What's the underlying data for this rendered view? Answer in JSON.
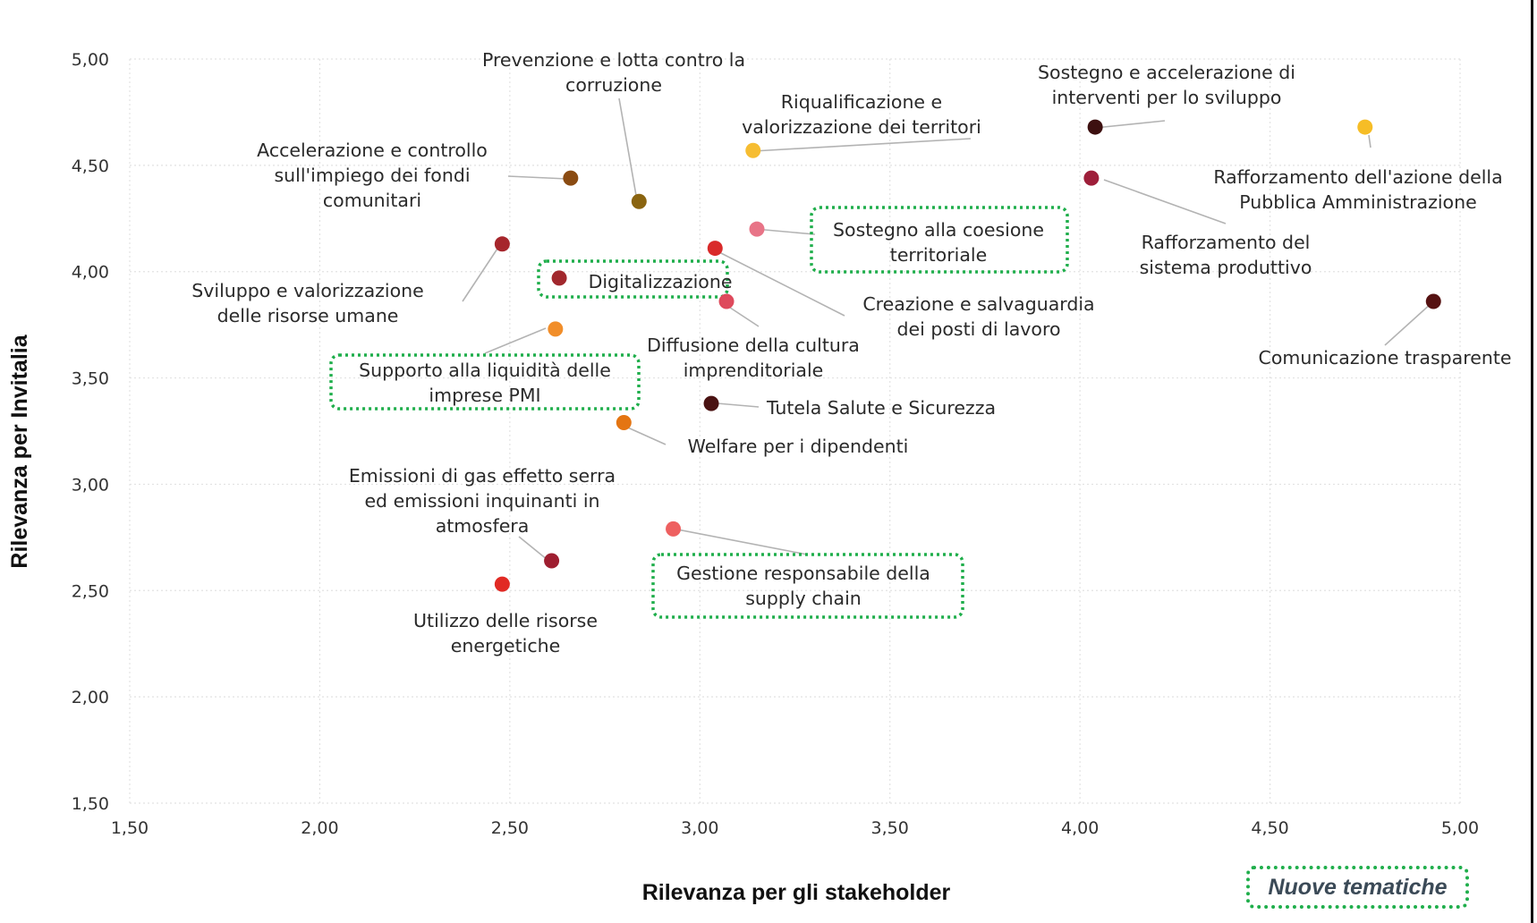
{
  "chart_data": {
    "type": "scatter",
    "xlabel": "Rilevanza per gli stakeholder",
    "ylabel": "Rilevanza per Invitalia",
    "xlim": [
      1.5,
      5.0
    ],
    "ylim": [
      1.5,
      5.0
    ],
    "xticks": [
      "1,50",
      "2,00",
      "2,50",
      "3,00",
      "3,50",
      "4,00",
      "4,50",
      "5,00"
    ],
    "yticks": [
      "1,50",
      "2,00",
      "2,50",
      "3,00",
      "3,50",
      "4,00",
      "4,50",
      "5,00"
    ],
    "grid": true,
    "legend": {
      "label": "Nuove tematiche",
      "placement": "bottom-right",
      "style": "green-dotted-box"
    },
    "points": [
      {
        "label": "Prevenzione e lotta contro la corruzione",
        "lines": [
          "Prevenzione e lotta contro la",
          "corruzione"
        ],
        "x": 2.84,
        "y": 4.33,
        "color": "#8a6410",
        "new": false
      },
      {
        "label": "Accelerazione e controllo sull'impiego dei fondi comunitari",
        "lines": [
          "Accelerazione e controllo",
          "sull'impiego dei fondi",
          "comunitari"
        ],
        "x": 2.66,
        "y": 4.44,
        "color": "#8a4b12",
        "new": false
      },
      {
        "label": "Riqualificazione e valorizzazione dei territori",
        "lines": [
          "Riqualificazione e",
          "valorizzazione dei territori"
        ],
        "x": 3.14,
        "y": 4.57,
        "color": "#f6bd32",
        "new": false
      },
      {
        "label": "Sostegno e accelerazione di interventi per lo sviluppo",
        "lines": [
          "Sostegno e accelerazione di",
          "interventi per lo sviluppo"
        ],
        "x": 4.04,
        "y": 4.68,
        "color": "#3d1010",
        "new": false
      },
      {
        "label": "Rafforzamento dell'azione della Pubblica Amministrazione",
        "lines": [
          "Rafforzamento dell'azione della",
          "Pubblica Amministrazione"
        ],
        "x": 4.75,
        "y": 4.68,
        "color": "#f6bd26",
        "new": false
      },
      {
        "label": "Rafforzamento del sistema produttivo",
        "lines": [
          "Rafforzamento del",
          "sistema produttivo"
        ],
        "x": 4.03,
        "y": 4.44,
        "color": "#9e1f3a",
        "new": false
      },
      {
        "label": "Sostegno alla coesione territoriale",
        "lines": [
          "Sostegno alla coesione",
          "territoriale"
        ],
        "x": 3.15,
        "y": 4.2,
        "color": "#e87487",
        "new": true
      },
      {
        "label": "Sviluppo e valorizzazione delle risorse umane",
        "lines": [
          "Sviluppo e valorizzazione",
          "delle risorse umane"
        ],
        "x": 2.48,
        "y": 4.13,
        "color": "#a6262c",
        "new": false
      },
      {
        "label": "Digitalizzazione",
        "lines": [
          "Digitalizzazione"
        ],
        "x": 2.63,
        "y": 3.97,
        "color": "#a1282d",
        "new": true
      },
      {
        "label": "Creazione e salvaguardia dei posti di lavoro",
        "lines": [
          "Creazione e salvaguardia",
          "dei posti di lavoro"
        ],
        "x": 3.04,
        "y": 4.11,
        "color": "#d92a2a",
        "new": false
      },
      {
        "label": "Diffusione della cultura imprenditoriale",
        "lines": [
          "Diffusione della cultura",
          "imprenditoriale"
        ],
        "x": 3.07,
        "y": 3.86,
        "color": "#de4a5c",
        "new": false
      },
      {
        "label": "Comunicazione trasparente",
        "lines": [
          "Comunicazione trasparente"
        ],
        "x": 4.93,
        "y": 3.86,
        "color": "#561212",
        "new": false
      },
      {
        "label": "Supporto alla liquidità delle imprese PMI",
        "lines": [
          "Supporto alla liquidità delle",
          "imprese PMI"
        ],
        "x": 2.62,
        "y": 3.73,
        "color": "#f18e2a",
        "new": true
      },
      {
        "label": "Tutela Salute e Sicurezza",
        "lines": [
          "Tutela Salute e Sicurezza"
        ],
        "x": 3.03,
        "y": 3.38,
        "color": "#4a1212",
        "new": false
      },
      {
        "label": "Welfare per i dipendenti",
        "lines": [
          "Welfare per i dipendenti"
        ],
        "x": 2.8,
        "y": 3.29,
        "color": "#e47512",
        "new": false
      },
      {
        "label": "Emissioni di gas effetto serra ed emissioni inquinanti in atmosfera",
        "lines": [
          "Emissioni di gas effetto serra",
          "ed emissioni inquinanti in",
          "atmosfera"
        ],
        "x": 2.61,
        "y": 2.64,
        "color": "#9e1e30",
        "new": false
      },
      {
        "label": "Gestione responsabile della supply chain",
        "lines": [
          "Gestione responsabile della",
          "supply chain"
        ],
        "x": 2.93,
        "y": 2.79,
        "color": "#ee6060",
        "new": true
      },
      {
        "label": "Utilizzo delle risorse energetiche",
        "lines": [
          "Utilizzo delle risorse",
          "energetiche"
        ],
        "x": 2.48,
        "y": 2.53,
        "color": "#e12a24",
        "new": false
      }
    ]
  }
}
